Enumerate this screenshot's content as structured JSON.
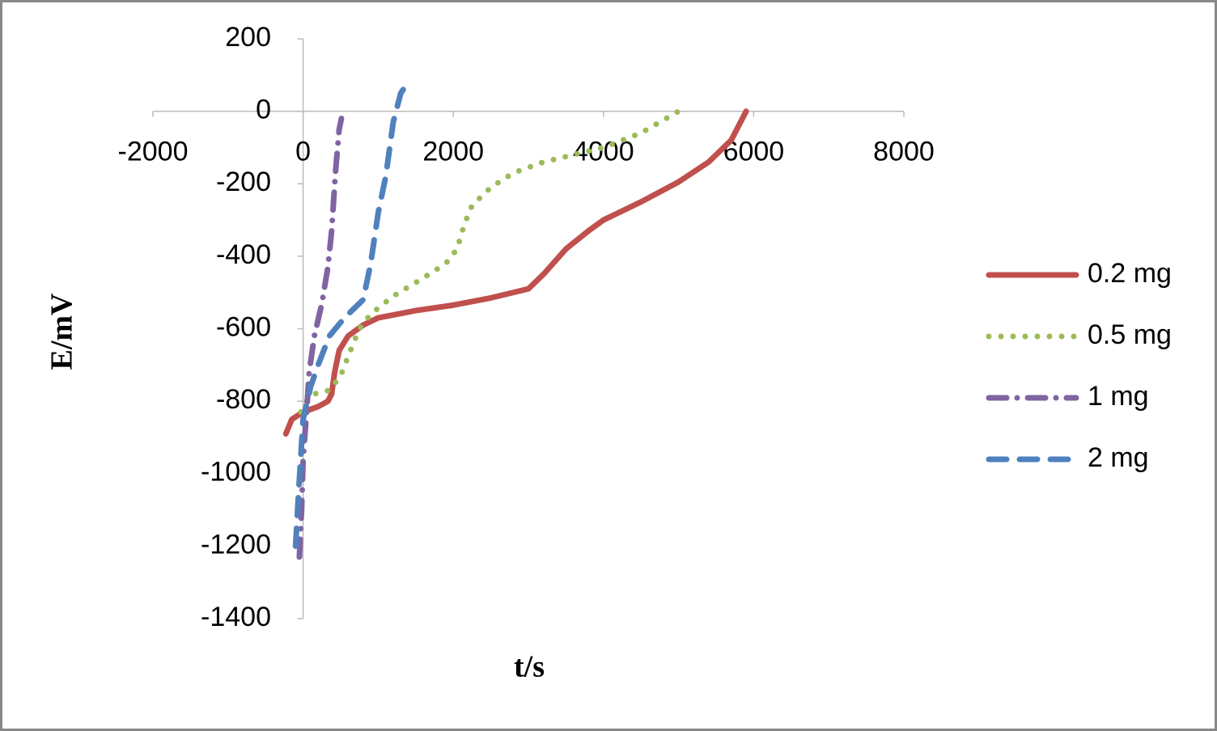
{
  "chart_data": {
    "type": "line",
    "xlabel": "t/s",
    "ylabel": "E/mV",
    "xlim": [
      -2000,
      8000
    ],
    "ylim": [
      -1400,
      200
    ],
    "xticks": [
      -2000,
      0,
      2000,
      4000,
      6000,
      8000
    ],
    "yticks": [
      200,
      0,
      -200,
      -400,
      -600,
      -800,
      -1000,
      -1200,
      -1400
    ],
    "legend": "right",
    "series": [
      {
        "name": "0.2 mg",
        "color": "#c0504d",
        "style": "solid",
        "x": [
          -230,
          -150,
          0,
          200,
          330,
          380,
          420,
          480,
          600,
          800,
          1000,
          1500,
          2000,
          2500,
          3000,
          3200,
          3500,
          3800,
          4000,
          4500,
          5000,
          5400,
          5700,
          5900
        ],
        "y": [
          -890,
          -850,
          -830,
          -815,
          -800,
          -780,
          -720,
          -660,
          -620,
          -590,
          -570,
          -550,
          -535,
          -515,
          -490,
          -450,
          -380,
          -330,
          -300,
          -250,
          -195,
          -140,
          -80,
          0
        ]
      },
      {
        "name": "0.5 mg",
        "color": "#9bbb59",
        "style": "dotted",
        "x": [
          -30,
          50,
          150,
          350,
          500,
          650,
          750,
          900,
          1200,
          1600,
          1900,
          2050,
          2150,
          2250,
          2500,
          2800,
          3200,
          3600,
          4000,
          4500,
          5000
        ],
        "y": [
          -830,
          -800,
          -780,
          -770,
          -730,
          -650,
          -600,
          -560,
          -510,
          -460,
          -420,
          -380,
          -310,
          -260,
          -210,
          -170,
          -140,
          -120,
          -100,
          -60,
          0
        ]
      },
      {
        "name": "1 mg",
        "color": "#8064a2",
        "style": "dashdot",
        "x": [
          -50,
          -20,
          0,
          50,
          80,
          150,
          250,
          330,
          380,
          430,
          480,
          510
        ],
        "y": [
          -1230,
          -1100,
          -960,
          -820,
          -720,
          -620,
          -530,
          -430,
          -330,
          -170,
          -50,
          -20
        ]
      },
      {
        "name": "2 mg",
        "color": "#4f81bd",
        "style": "dashed",
        "x": [
          -100,
          -60,
          0,
          100,
          200,
          350,
          550,
          800,
          900,
          1000,
          1100,
          1200,
          1300,
          1400
        ],
        "y": [
          -1200,
          -1050,
          -850,
          -760,
          -700,
          -620,
          -570,
          -520,
          -420,
          -280,
          -180,
          -30,
          50,
          80
        ]
      }
    ]
  }
}
